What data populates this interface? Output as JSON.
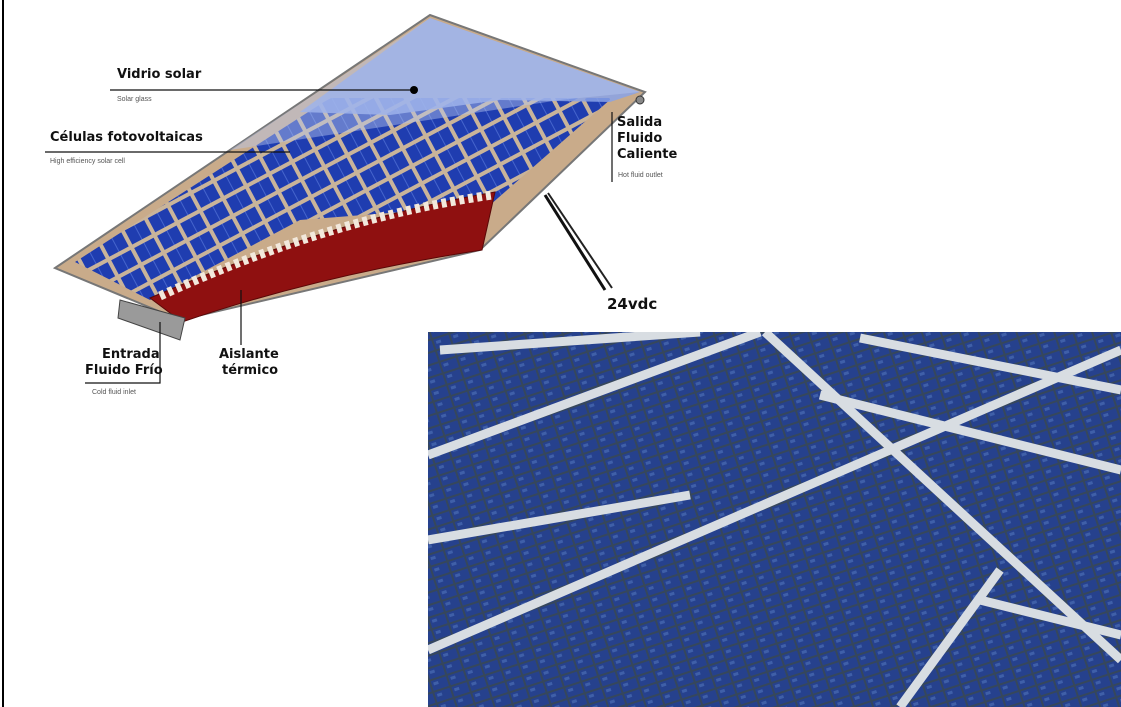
{
  "labels": [
    {
      "title": "Vidrio solar",
      "subtitle": "Solar glass"
    },
    {
      "title": "Células fotovoltaicas",
      "subtitle": "High efficiency solar cell"
    },
    {
      "title_lines": [
        "Salida",
        "Fluido",
        "Caliente"
      ],
      "subtitle": "Hot fluid outlet"
    },
    {
      "title": "24vdc"
    },
    {
      "title_lines": [
        "Entrada",
        "Fluido Frío"
      ],
      "subtitle": "Cold fluid inlet"
    },
    {
      "title_lines": [
        "Aislante",
        "térmico"
      ]
    }
  ]
}
